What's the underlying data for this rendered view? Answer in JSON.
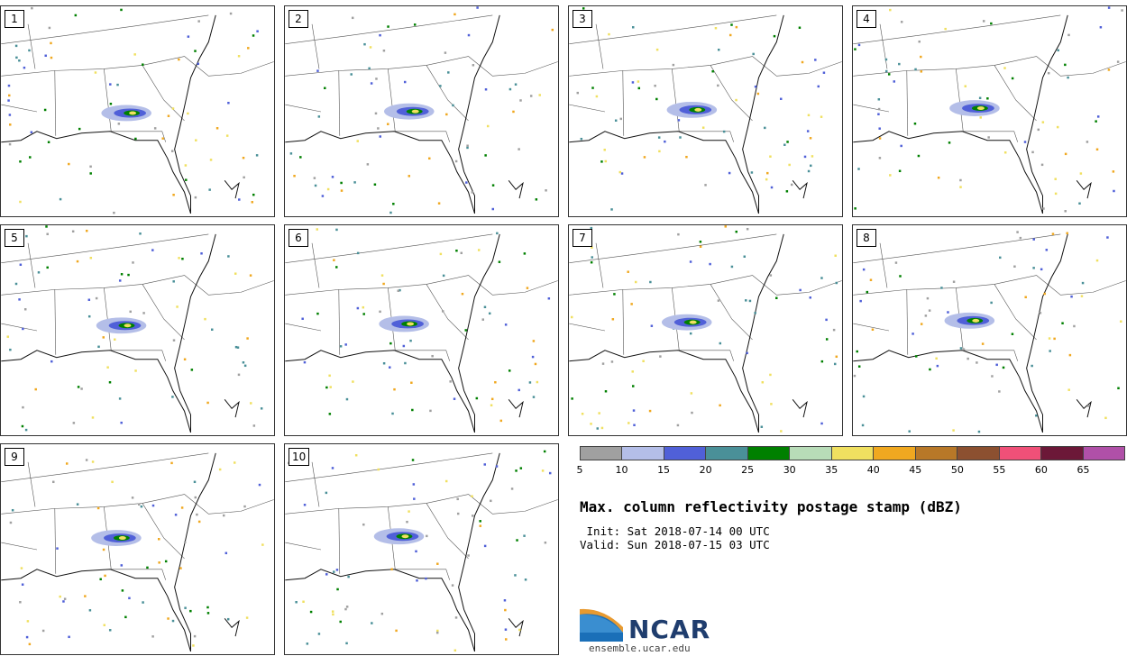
{
  "panels": [
    {
      "label": "1"
    },
    {
      "label": "2"
    },
    {
      "label": "3"
    },
    {
      "label": "4"
    },
    {
      "label": "5"
    },
    {
      "label": "6"
    },
    {
      "label": "7"
    },
    {
      "label": "8"
    },
    {
      "label": "9"
    },
    {
      "label": "10"
    }
  ],
  "colorbar": {
    "colors": [
      "#a0a0a0",
      "#b4bee8",
      "#5060d8",
      "#4a9098",
      "#008000",
      "#b8dcb8",
      "#f0e060",
      "#f0a820",
      "#b87828",
      "#8c5030",
      "#f05078",
      "#6c1838",
      "#b050a8"
    ],
    "ticks": [
      "5",
      "10",
      "15",
      "20",
      "25",
      "30",
      "35",
      "40",
      "45",
      "50",
      "55",
      "60",
      "65"
    ]
  },
  "title": "Max. column reflectivity postage stamp (dBZ)",
  "init": " Init: Sat 2018-07-14 00 UTC",
  "valid": "Valid: Sun 2018-07-15 03 UTC",
  "logo": {
    "text": "NCAR",
    "site": "ensemble.ucar.edu"
  }
}
